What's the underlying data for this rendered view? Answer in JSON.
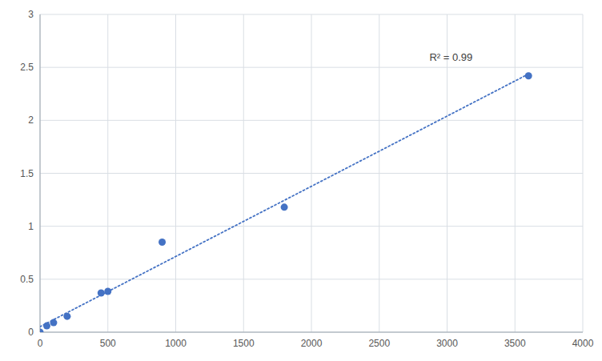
{
  "chart_data": {
    "type": "scatter",
    "series": [
      {
        "type": "scatter",
        "marker": "circle",
        "color": "#4472C4",
        "x": [
          0,
          50,
          100,
          200,
          450,
          500,
          900,
          1800,
          3600
        ],
        "values": [
          0.0,
          0.06,
          0.09,
          0.15,
          0.37,
          0.385,
          0.85,
          1.18,
          2.42
        ]
      },
      {
        "type": "line",
        "line_style": "dotted",
        "color": "#4472C4",
        "x": [
          0,
          3600
        ],
        "values": [
          0.052114,
          2.437576
        ]
      }
    ],
    "xlim": [
      0,
      4000
    ],
    "ylim": [
      0,
      3
    ],
    "xticks": [
      0,
      500,
      1000,
      1500,
      2000,
      2500,
      3000,
      3500,
      4000
    ],
    "yticks": [
      0,
      0.5,
      1,
      1.5,
      2,
      2.5,
      3
    ],
    "grid": true,
    "annotations": [
      {
        "text": "R² = 0.99",
        "x": 2870,
        "y": 2.65
      }
    ]
  }
}
